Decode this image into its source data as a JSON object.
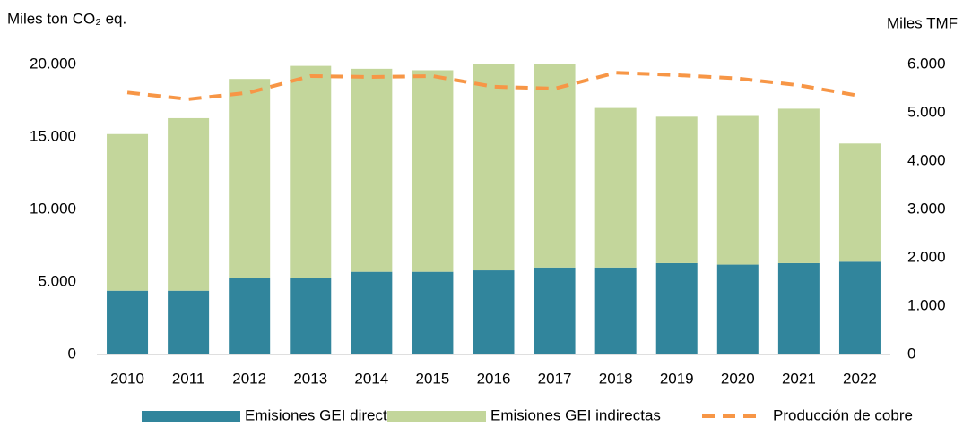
{
  "chart_data": {
    "type": "bar",
    "y_axis_label": "Miles ton CO₂ eq.",
    "y2_axis_label": "Miles TMF",
    "categories": [
      "2010",
      "2011",
      "2012",
      "2013",
      "2014",
      "2015",
      "2016",
      "2017",
      "2018",
      "2019",
      "2020",
      "2021",
      "2022"
    ],
    "stacked": true,
    "series": [
      {
        "name": "Emisiones GEI directas",
        "color": "#31859c",
        "type": "bar",
        "values": [
          4400,
          4400,
          5300,
          5300,
          5700,
          5700,
          5800,
          6000,
          6000,
          6300,
          6200,
          6300,
          6400
        ]
      },
      {
        "name": "Emisiones GEI indirectas",
        "color": "#c3d69b",
        "type": "bar",
        "values": [
          10800,
          11900,
          13700,
          14600,
          14000,
          13900,
          14200,
          14000,
          11000,
          10100,
          10250,
          10650,
          8150
        ]
      },
      {
        "name": "Producción de cobre",
        "color": "#f79646",
        "type": "line",
        "dashed": true,
        "axis": "y2",
        "values": [
          5420,
          5280,
          5420,
          5760,
          5740,
          5760,
          5540,
          5500,
          5830,
          5780,
          5710,
          5570,
          5350
        ]
      }
    ],
    "ylim": [
      0,
      20000
    ],
    "yticks": [
      0,
      {
        "value": 5000,
        "label": "5.000"
      },
      {
        "value": 10000,
        "label": "10.000"
      },
      {
        "value": 15000,
        "label": "15.000"
      },
      {
        "value": 20000,
        "label": "20.000"
      }
    ],
    "y2lim": [
      0,
      6000
    ],
    "y2ticks": [
      0,
      {
        "value": 1000,
        "label": "1.000"
      },
      {
        "value": 2000,
        "label": "2.000"
      },
      {
        "value": 3000,
        "label": "3.000"
      },
      {
        "value": 4000,
        "label": "4.000"
      },
      {
        "value": 5000,
        "label": "5.000"
      },
      {
        "value": 6000,
        "label": "6.000"
      }
    ],
    "grid": false,
    "legend": "bottom"
  }
}
